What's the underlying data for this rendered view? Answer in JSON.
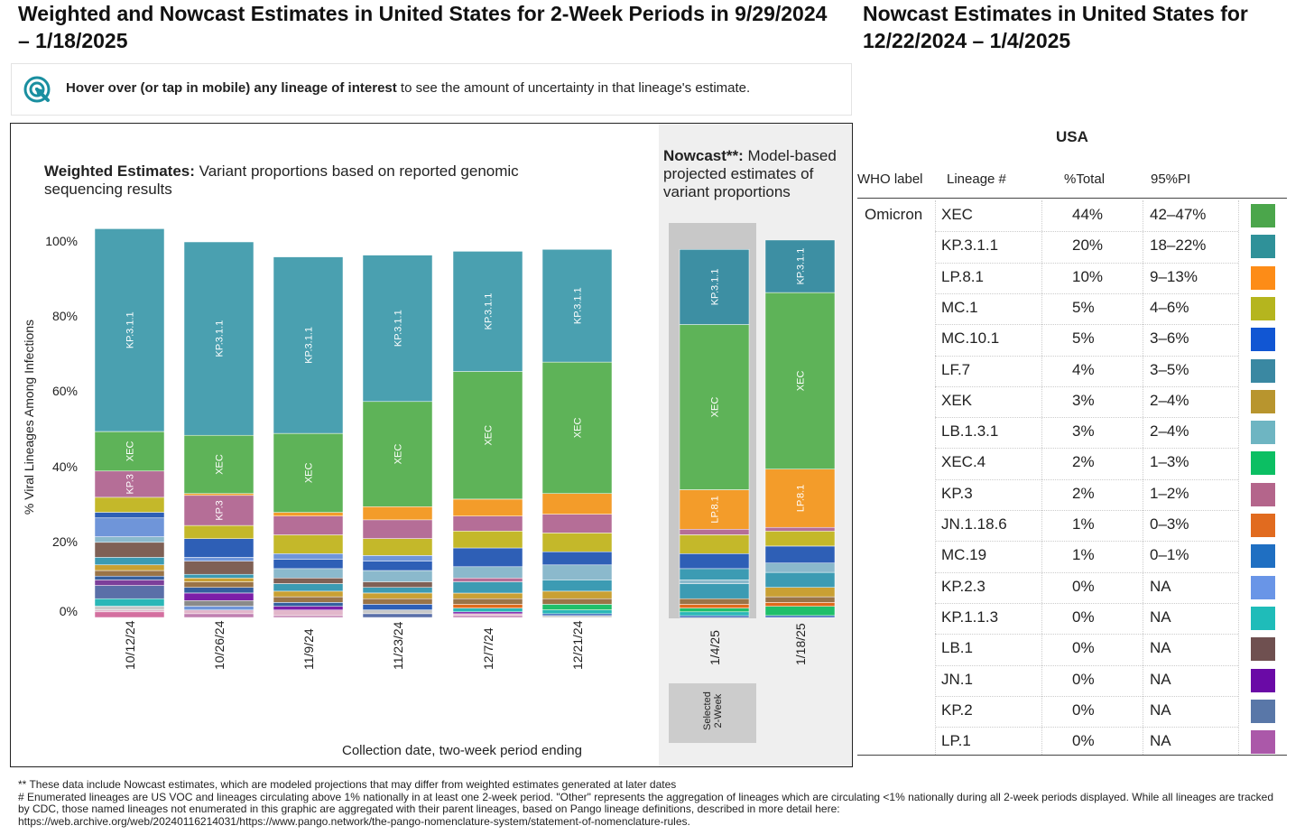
{
  "titles": {
    "main": "Weighted and Nowcast Estimates in United States for 2-Week Periods in 9/29/2024 – 1/18/2025",
    "side": "Nowcast Estimates in United States for 12/22/2024 – 1/4/2025"
  },
  "hint": {
    "bold": "Hover over (or tap in mobile) any lineage of interest",
    "rest": " to see the amount of uncertainty in that lineage's estimate.",
    "icon": "pointer-icon"
  },
  "chart": {
    "weighted_title_bold": "Weighted Estimates:",
    "weighted_title_rest": " Variant proportions based on reported genomic sequencing results",
    "nowcast_title_bold": "Nowcast**:",
    "nowcast_title_rest": " Model-based projected estimates of variant proportions",
    "selected_label_1": "Selected",
    "selected_label_2": "2-Week"
  },
  "chart_data": {
    "type": "bar",
    "stacked": true,
    "xlabel": "Collection date, two-week period ending",
    "ylabel": "% Viral Lineages Among Infections",
    "ylim": [
      0,
      100
    ],
    "yticks": [
      "0%",
      "20%",
      "40%",
      "60%",
      "80%",
      "100%"
    ],
    "categories": [
      "10/12/24",
      "10/26/24",
      "11/9/24",
      "11/23/24",
      "12/7/24",
      "12/21/24",
      "1/4/25",
      "1/18/25"
    ],
    "nowcast_categories": [
      "1/4/25",
      "1/18/25"
    ],
    "selected_category": "1/4/25",
    "segments_bottom_to_top": [
      {
        "colors": [
          "#d46f9f",
          "#e2b7cb",
          "#c9c9c9",
          "#2ab7b7",
          "#5a6fa8",
          "#7c3f9a",
          "#345f9f",
          "#9a7447",
          "#c9a033",
          "#3c9bb3",
          "#7f6055",
          "#8bb9cc",
          "#6f95d9",
          "#2e5fb6",
          "#c4b82a",
          "#b56e97",
          "#5eb358",
          "#4aa0b0"
        ],
        "values": [
          1.5,
          0.5,
          1.0,
          2.0,
          3.5,
          1.5,
          1.0,
          1.5,
          1.5,
          2.0,
          4.0,
          1.5,
          5.0,
          1.5,
          4.0,
          7.0,
          10.5,
          54.0
        ],
        "labels": {
          "15": "KP.3",
          "16": "XEC",
          "17": "KP.3.1.1"
        }
      },
      {
        "colors": [
          "#c07fb0",
          "#e2b7cb",
          "#6f95d9",
          "#8a8a8a",
          "#7c1fa8",
          "#345f9f",
          "#9a7447",
          "#c9a033",
          "#3c9bb3",
          "#7f6055",
          "#6f95d9",
          "#2e5fb6",
          "#c4b82a",
          "#b56e97",
          "#f0a030",
          "#5eb358",
          "#4aa0b0"
        ],
        "values": [
          1.0,
          1.0,
          1.0,
          1.5,
          2.0,
          1.5,
          1.5,
          1.0,
          1.0,
          3.5,
          1.0,
          5.0,
          3.5,
          8.0,
          0.5,
          15.5,
          51.5
        ],
        "labels": {
          "13": "KP.3",
          "15": "XEC",
          "16": "KP.3.1.1"
        }
      },
      {
        "colors": [
          "#c07fb0",
          "#e2b7cb",
          "#7c1fa8",
          "#345f9f",
          "#9a7447",
          "#c9a033",
          "#3c9bb3",
          "#7f6055",
          "#8bb9cc",
          "#2e5fb6",
          "#6f95d9",
          "#c4b82a",
          "#b56e97",
          "#f39c2a",
          "#5eb358",
          "#4aa0b0"
        ],
        "values": [
          0.5,
          1.5,
          1.0,
          1.0,
          1.5,
          1.5,
          2.0,
          1.5,
          2.5,
          2.5,
          1.5,
          5.0,
          5.0,
          1.0,
          21.0,
          47.0
        ],
        "labels": {
          "14": "XEC",
          "15": "KP.3.1.1"
        }
      },
      {
        "colors": [
          "#5a6fa8",
          "#c9c9c9",
          "#2e5fb6",
          "#9a7447",
          "#c9a033",
          "#3c9bb3",
          "#7f6055",
          "#8bb9cc",
          "#2e5fb6",
          "#6f95d9",
          "#c4b82a",
          "#b56e97",
          "#f39c2a",
          "#5eb358",
          "#4aa0b0"
        ],
        "values": [
          1.0,
          1.0,
          1.5,
          1.5,
          1.5,
          1.5,
          1.5,
          3.0,
          2.5,
          1.5,
          4.5,
          5.0,
          3.5,
          28.0,
          39.0
        ],
        "labels": {
          "13": "XEC",
          "14": "KP.3.1.1"
        }
      },
      {
        "colors": [
          "#c07fb0",
          "#e2b7cb",
          "#7c1fa8",
          "#2ab7b7",
          "#e06a1b",
          "#9a7447",
          "#c9a033",
          "#3c9bb3",
          "#b56e97",
          "#8bb9cc",
          "#2e5fb6",
          "#c4b82a",
          "#b56e97",
          "#f39c2a",
          "#5eb358",
          "#4aa0b0"
        ],
        "values": [
          0.5,
          0.5,
          0.5,
          1.0,
          1.0,
          1.5,
          1.5,
          3.0,
          1.0,
          3.0,
          5.0,
          4.5,
          4.0,
          4.5,
          34.0,
          32.0
        ],
        "labels": {
          "14": "XEC",
          "15": "KP.3.1.1"
        }
      },
      {
        "colors": [
          "#c9c9c9",
          "#2e5fb6",
          "#2ab7b7",
          "#1fbf6a",
          "#9a7447",
          "#c9a033",
          "#3c9bb3",
          "#8bb9cc",
          "#2e5fb6",
          "#c4b82a",
          "#b56e97",
          "#f39c2a",
          "#5eb358",
          "#4aa0b0"
        ],
        "values": [
          0.5,
          0.5,
          1.0,
          1.5,
          1.5,
          2.0,
          3.0,
          4.0,
          3.5,
          5.0,
          5.0,
          5.5,
          35.0,
          30.0
        ],
        "labels": {
          "12": "XEC",
          "13": "KP.3.1.1"
        }
      },
      {
        "colors": [
          "#2e5fb6",
          "#2ab7b7",
          "#1fbf6a",
          "#e06a1b",
          "#9a7447",
          "#3c9bb3",
          "#8bb9cc",
          "#3c9bb3",
          "#2e5fb6",
          "#c4b82a",
          "#b56e97",
          "#f39c2a",
          "#5eb358",
          "#3d8fa3"
        ],
        "values": [
          0.5,
          1.0,
          1.0,
          1.0,
          1.5,
          4.0,
          1.0,
          3.0,
          4.0,
          5.0,
          1.5,
          10.5,
          44.0,
          20.0
        ],
        "labels": {
          "11": "LP.8.1",
          "12": "XEC",
          "13": "KP.3.1.1"
        }
      },
      {
        "colors": [
          "#2e5fb6",
          "#1fbf6a",
          "#e06a1b",
          "#9a7447",
          "#c9a033",
          "#3c9bb3",
          "#8bb9cc",
          "#2e5fb6",
          "#c4b82a",
          "#b56e97",
          "#f39c2a",
          "#5eb358",
          "#3d8fa3"
        ],
        "values": [
          0.5,
          2.5,
          1.0,
          1.5,
          2.5,
          4.0,
          2.5,
          4.5,
          4.0,
          1.0,
          15.5,
          47.0,
          14.0
        ],
        "labels": {
          "10": "LP.8.1",
          "11": "XEC",
          "12": "KP.3.1.1"
        }
      }
    ]
  },
  "table": {
    "country": "USA",
    "headers": [
      "WHO label",
      "Lineage #",
      "%Total",
      "95%PI"
    ],
    "who_label": "Omicron",
    "rows": [
      {
        "lineage": "XEC",
        "total": "44%",
        "pi": "42–47%",
        "color": "#4ba64b"
      },
      {
        "lineage": "KP.3.1.1",
        "total": "20%",
        "pi": "18–22%",
        "color": "#2f9199"
      },
      {
        "lineage": "LP.8.1",
        "total": "10%",
        "pi": "9–13%",
        "color": "#fd8c17"
      },
      {
        "lineage": "MC.1",
        "total": "5%",
        "pi": "4–6%",
        "color": "#b5b51e"
      },
      {
        "lineage": "MC.10.1",
        "total": "5%",
        "pi": "3–6%",
        "color": "#1156d3"
      },
      {
        "lineage": "LF.7",
        "total": "4%",
        "pi": "3–5%",
        "color": "#3a88a2"
      },
      {
        "lineage": "XEK",
        "total": "3%",
        "pi": "2–4%",
        "color": "#b8952e"
      },
      {
        "lineage": "LB.1.3.1",
        "total": "3%",
        "pi": "2–4%",
        "color": "#6eb5c2"
      },
      {
        "lineage": "XEC.4",
        "total": "2%",
        "pi": "1–3%",
        "color": "#0cbf63"
      },
      {
        "lineage": "KP.3",
        "total": "2%",
        "pi": "1–2%",
        "color": "#b4658b"
      },
      {
        "lineage": "JN.1.18.6",
        "total": "1%",
        "pi": "0–3%",
        "color": "#e16b1f"
      },
      {
        "lineage": "MC.19",
        "total": "1%",
        "pi": "0–1%",
        "color": "#1f6fc2"
      },
      {
        "lineage": "KP.2.3",
        "total": "0%",
        "pi": "NA",
        "color": "#6995e7"
      },
      {
        "lineage": "KP.1.1.3",
        "total": "0%",
        "pi": "NA",
        "color": "#1fbcb9"
      },
      {
        "lineage": "LB.1",
        "total": "0%",
        "pi": "NA",
        "color": "#6f5050"
      },
      {
        "lineage": "JN.1",
        "total": "0%",
        "pi": "NA",
        "color": "#6a0aa6"
      },
      {
        "lineage": "KP.2",
        "total": "0%",
        "pi": "NA",
        "color": "#5977a8"
      },
      {
        "lineage": "LP.1",
        "total": "0%",
        "pi": "NA",
        "color": "#ab58a9"
      }
    ]
  },
  "footnotes": [
    "**     These data include Nowcast estimates, which are modeled projections that may differ from weighted estimates generated at later dates",
    "# Enumerated lineages are US VOC and lineages circulating above 1% nationally in at least one 2-week period. \"Other\" represents the aggregation of lineages which are circulating <1% nationally during all 2-week periods displayed.  While all lineages are tracked",
    "by CDC, those named lineages not enumerated in this graphic are aggregated with their parent lineages, based on Pango lineage definitions, described in more detail here:",
    "https://web.archive.org/web/20240116214031/https://www.pango.network/the-pango-nomenclature-system/statement-of-nomenclature-rules."
  ]
}
